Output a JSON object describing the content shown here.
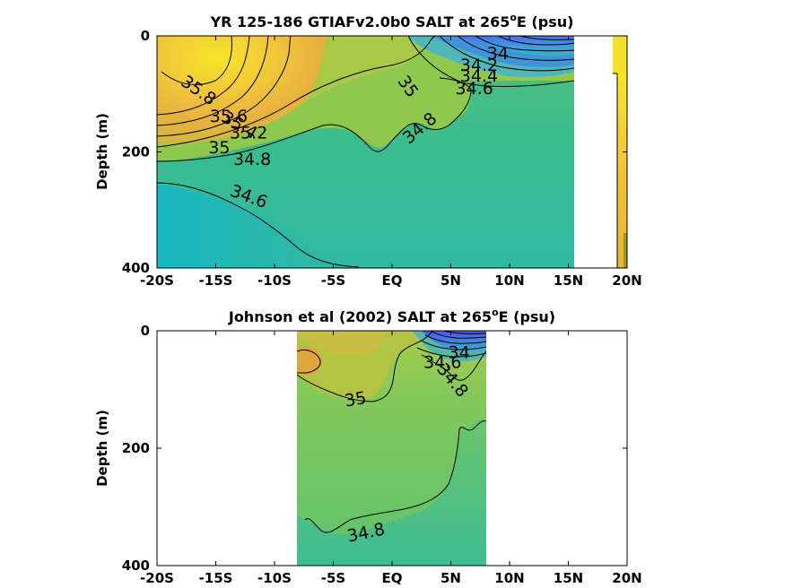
{
  "chart_data": [
    {
      "type": "heatmap",
      "title_main": "YR 125-186 GTIAFv2.0b0 SALT at 265",
      "title_sup": "o",
      "title_end": "E (psu)",
      "ylabel": "Depth (m)",
      "xlim": [
        -20,
        20
      ],
      "ylim": [
        0,
        400
      ],
      "x_ticks": [
        {
          "v": -20,
          "label": "-20S"
        },
        {
          "v": -15,
          "label": "-15S"
        },
        {
          "v": -10,
          "label": "-10S"
        },
        {
          "v": -5,
          "label": "-5S"
        },
        {
          "v": 0,
          "label": "EQ"
        },
        {
          "v": 5,
          "label": "5N"
        },
        {
          "v": 10,
          "label": "10N"
        },
        {
          "v": 15,
          "label": "15N"
        },
        {
          "v": 20,
          "label": "20N"
        }
      ],
      "y_ticks": [
        {
          "v": 0,
          "label": "0"
        },
        {
          "v": 200,
          "label": "200"
        },
        {
          "v": 400,
          "label": "400"
        }
      ],
      "contour_labels": [
        {
          "text": "35.8",
          "lat": -16.5,
          "depth": 95,
          "angle": 35
        },
        {
          "text": "35.6",
          "lat": -13.9,
          "depth": 140,
          "angle": 0
        },
        {
          "text": "35.4",
          "lat": -13.0,
          "depth": 155,
          "angle": 30
        },
        {
          "text": "35.2",
          "lat": -12.2,
          "depth": 168,
          "angle": 0
        },
        {
          "text": "35",
          "lat": -14.7,
          "depth": 194,
          "angle": 0
        },
        {
          "text": "34.8",
          "lat": -11.9,
          "depth": 214,
          "angle": 0
        },
        {
          "text": "34.6",
          "lat": -12.2,
          "depth": 278,
          "angle": 20
        },
        {
          "text": "35",
          "lat": 1.3,
          "depth": 88,
          "angle": 55
        },
        {
          "text": "34.8",
          "lat": 2.4,
          "depth": 160,
          "angle": -40
        },
        {
          "text": "34",
          "lat": 9.0,
          "depth": 32,
          "angle": 0
        },
        {
          "text": "34.2",
          "lat": 7.4,
          "depth": 52,
          "angle": 0
        },
        {
          "text": "34.4",
          "lat": 7.4,
          "depth": 70,
          "angle": 0
        },
        {
          "text": "34.6",
          "lat": 7.0,
          "depth": 92,
          "angle": 0
        }
      ]
    },
    {
      "type": "heatmap",
      "title_main": "Johnson et al (2002) SALT at 265",
      "title_sup": "o",
      "title_end": "E (psu)",
      "ylabel": "Depth (m)",
      "xlim": [
        -20,
        20
      ],
      "ylim": [
        0,
        400
      ],
      "data_extent_lat": [
        -8,
        8
      ],
      "x_ticks": [
        {
          "v": -20,
          "label": "-20S"
        },
        {
          "v": -15,
          "label": "-15S"
        },
        {
          "v": -10,
          "label": "-10S"
        },
        {
          "v": -5,
          "label": "-5S"
        },
        {
          "v": 0,
          "label": "EQ"
        },
        {
          "v": 5,
          "label": "5N"
        },
        {
          "v": 10,
          "label": "10N"
        },
        {
          "v": 15,
          "label": "15N"
        },
        {
          "v": 20,
          "label": "20N"
        }
      ],
      "y_ticks": [
        {
          "v": 0,
          "label": "0"
        },
        {
          "v": 200,
          "label": "200"
        },
        {
          "v": 400,
          "label": "400"
        }
      ],
      "contour_labels": [
        {
          "text": "35",
          "lat": -3.1,
          "depth": 118,
          "angle": -10
        },
        {
          "text": "34.8",
          "lat": -2.2,
          "depth": 345,
          "angle": -12
        },
        {
          "text": "34",
          "lat": 5.7,
          "depth": 38,
          "angle": 0
        },
        {
          "text": "34.6",
          "lat": 4.3,
          "depth": 55,
          "angle": 0
        },
        {
          "text": "34.8",
          "lat": 5.1,
          "depth": 85,
          "angle": 50
        }
      ]
    }
  ]
}
